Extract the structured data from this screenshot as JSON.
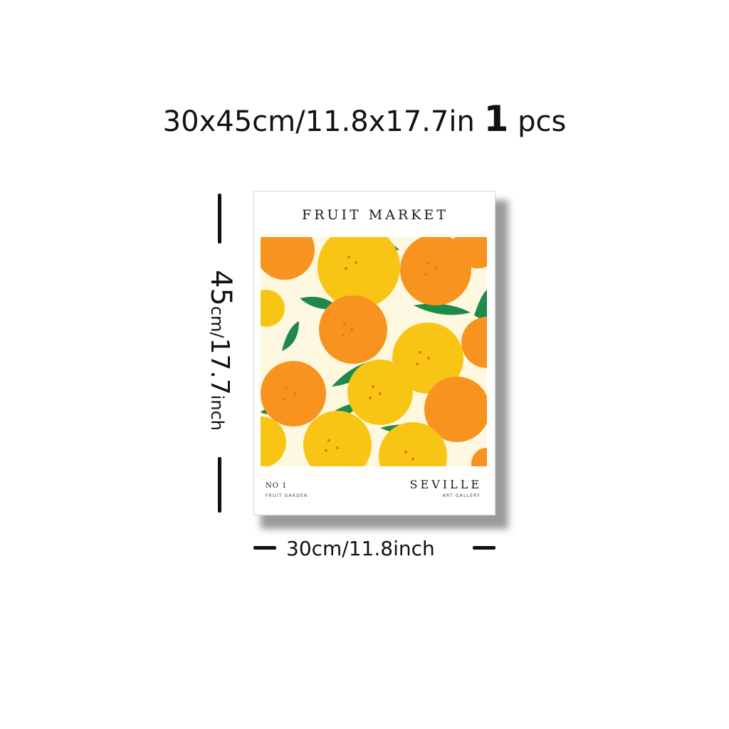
{
  "headline": {
    "size_text": "30x45cm/11.8x17.7in",
    "quantity": "1",
    "unit": "pcs"
  },
  "poster": {
    "title": "FRUIT MARKET",
    "number_label": "NO 1",
    "subtitle_left": "FRUIT GARDEN",
    "city": "SEVILLE",
    "subtitle_right": "ART GALLERY",
    "artwork_icon": "oranges-pattern",
    "colors": {
      "background": "#fdf8df",
      "orange": "#f7931e",
      "yellow": "#f9c515",
      "leaf": "#1e8a4a"
    }
  },
  "dimensions": {
    "height_number": "45",
    "height_unit_cm": "cm/",
    "height_inches": "17.7",
    "height_unit_in": "inch",
    "width_label": "30cm/11.8inch"
  }
}
